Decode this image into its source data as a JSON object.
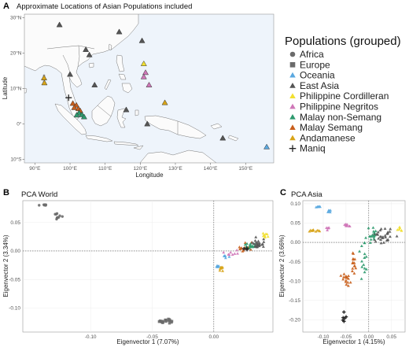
{
  "panels": {
    "a_label": "A",
    "b_label": "B",
    "c_label": "C"
  },
  "legend": {
    "title": "Populations (grouped)",
    "items": [
      {
        "name": "Africa",
        "color": "#6b6b6b",
        "shape": "circle"
      },
      {
        "name": "Europe",
        "color": "#6b6b6b",
        "shape": "square"
      },
      {
        "name": "Oceania",
        "color": "#5aa8e0",
        "shape": "triangle"
      },
      {
        "name": "East Asia",
        "color": "#555555",
        "shape": "triangle"
      },
      {
        "name": "Philippine Cordilleran",
        "color": "#f2e030",
        "shape": "triangle"
      },
      {
        "name": "Philippine Negritos",
        "color": "#cf77b8",
        "shape": "triangle"
      },
      {
        "name": "Malay non-Semang",
        "color": "#2e9a6e",
        "shape": "triangle"
      },
      {
        "name": "Malay Semang",
        "color": "#c95f1c",
        "shape": "triangle"
      },
      {
        "name": "Andamanese",
        "color": "#d8a418",
        "shape": "triangle"
      },
      {
        "name": "Maniq",
        "color": "#222222",
        "shape": "plus"
      }
    ]
  },
  "chart_data": [
    {
      "type": "scatter",
      "subtype": "map",
      "title": "Approximate Locations of Asian Populations included",
      "xlabel": "Longitude",
      "ylabel": "Latitude",
      "xlim": [
        87,
        158
      ],
      "ylim": [
        -11,
        31
      ],
      "x_ticks": [
        90,
        100,
        110,
        120,
        130,
        140,
        150
      ],
      "x_tick_labels": [
        "90°E",
        "100°E",
        "110°E",
        "120°E",
        "130°E",
        "140°E",
        "150°E"
      ],
      "y_ticks": [
        -10,
        0,
        10,
        20,
        30
      ],
      "y_tick_labels": [
        "10°S",
        "0°",
        "10°N",
        "20°N",
        "30°N"
      ],
      "ocean_color": "#eef4fb",
      "points": [
        {
          "group": "East Asia",
          "x": 97,
          "y": 28
        },
        {
          "group": "East Asia",
          "x": 114,
          "y": 26
        },
        {
          "group": "East Asia",
          "x": 104.5,
          "y": 21
        },
        {
          "group": "East Asia",
          "x": 105.5,
          "y": 19.5
        },
        {
          "group": "East Asia",
          "x": 120.5,
          "y": 23.5
        },
        {
          "group": "East Asia",
          "x": 100,
          "y": 14
        },
        {
          "group": "East Asia",
          "x": 107,
          "y": 11
        },
        {
          "group": "East Asia",
          "x": 116,
          "y": 4
        },
        {
          "group": "East Asia",
          "x": 122,
          "y": 0
        },
        {
          "group": "East Asia",
          "x": 143.5,
          "y": -4
        },
        {
          "group": "Oceania",
          "x": 156,
          "y": -6.5
        },
        {
          "group": "Philippine Cordilleran",
          "x": 121,
          "y": 17
        },
        {
          "group": "Philippine Negritos",
          "x": 121.5,
          "y": 14.5
        },
        {
          "group": "Philippine Negritos",
          "x": 122.5,
          "y": 11
        },
        {
          "group": "Philippine Negritos",
          "x": 121,
          "y": 13.3
        },
        {
          "group": "Andamanese",
          "x": 92.6,
          "y": 13
        },
        {
          "group": "Andamanese",
          "x": 92.7,
          "y": 11.6
        },
        {
          "group": "Andamanese",
          "x": 127,
          "y": 6
        },
        {
          "group": "Maniq",
          "x": 99.6,
          "y": 7.4
        },
        {
          "group": "Malay Semang",
          "x": 100.8,
          "y": 5.8
        },
        {
          "group": "Malay Semang",
          "x": 101.8,
          "y": 5.3
        },
        {
          "group": "Malay Semang",
          "x": 101.2,
          "y": 4.6
        },
        {
          "group": "Malay Semang",
          "x": 102.4,
          "y": 4.3
        },
        {
          "group": "Malay Semang",
          "x": 102.9,
          "y": 3.7
        },
        {
          "group": "Malay non-Semang",
          "x": 102.6,
          "y": 3.1
        },
        {
          "group": "Malay non-Semang",
          "x": 103.4,
          "y": 2.6
        },
        {
          "group": "Malay non-Semang",
          "x": 101.9,
          "y": 2.5
        },
        {
          "group": "Malay non-Semang",
          "x": 104,
          "y": 2
        }
      ]
    },
    {
      "type": "scatter",
      "title": "PCA World",
      "xlabel": "Eigenvector 1 (7.07%)",
      "ylabel": "Eigenvector 2 (3.34%)",
      "xlim": [
        -0.155,
        0.048
      ],
      "ylim": [
        -0.142,
        0.088
      ],
      "x_ticks": [
        -0.1,
        -0.05,
        0.0
      ],
      "x_tick_labels": [
        "-0.10",
        "-0.05",
        "0.00"
      ],
      "y_ticks": [
        -0.1,
        -0.05,
        0.0,
        0.05
      ],
      "y_tick_labels": [
        "-0.10",
        "-0.05",
        "0.00",
        "0.05"
      ],
      "reference_lines": {
        "x": 0,
        "y": 0
      },
      "clusters": [
        {
          "group": "Africa",
          "cx": -0.137,
          "cy": 0.08,
          "n": 6,
          "sx": 0.0012,
          "sy": 0.0012
        },
        {
          "group": "Africa",
          "cx": -0.127,
          "cy": 0.06,
          "n": 10,
          "sx": 0.0015,
          "sy": 0.0025
        },
        {
          "group": "Europe",
          "cx": -0.039,
          "cy": -0.122,
          "n": 22,
          "sx": 0.004,
          "sy": 0.0016
        },
        {
          "group": "Andamanese",
          "cx": 0.006,
          "cy": -0.03,
          "n": 8,
          "sx": 0.0009,
          "sy": 0.0035
        },
        {
          "group": "Oceania",
          "cx": 0.003,
          "cy": -0.027,
          "n": 6,
          "sx": 0.0008,
          "sy": 0.0012
        },
        {
          "group": "Oceania",
          "cx": 0.01,
          "cy": -0.01,
          "n": 5,
          "sx": 0.0015,
          "sy": 0.0015
        },
        {
          "group": "Philippine Negritos",
          "cx": 0.016,
          "cy": -0.004,
          "n": 8,
          "sx": 0.003,
          "sy": 0.002
        },
        {
          "group": "Malay Semang",
          "cx": 0.027,
          "cy": 0.006,
          "n": 14,
          "sx": 0.003,
          "sy": 0.004
        },
        {
          "group": "Malay non-Semang",
          "cx": 0.031,
          "cy": 0.009,
          "n": 14,
          "sx": 0.003,
          "sy": 0.003
        },
        {
          "group": "East Asia",
          "cx": 0.035,
          "cy": 0.012,
          "n": 24,
          "sx": 0.003,
          "sy": 0.004
        },
        {
          "group": "Philippine Cordilleran",
          "cx": 0.042,
          "cy": 0.028,
          "n": 8,
          "sx": 0.0015,
          "sy": 0.0025
        },
        {
          "group": "Maniq",
          "cx": 0.025,
          "cy": 0.003,
          "n": 3,
          "sx": 0.0015,
          "sy": 0.0015
        }
      ]
    },
    {
      "type": "scatter",
      "title": "PCA Asia",
      "xlabel": "Eigenvector 1 (4.15%)",
      "ylabel": "Eigenvector 2 (3.66%)",
      "xlim": [
        -0.145,
        0.08
      ],
      "ylim": [
        -0.232,
        0.108
      ],
      "x_ticks": [
        -0.1,
        -0.05,
        0.0,
        0.05
      ],
      "x_tick_labels": [
        "-0.10",
        "-0.05",
        "0.00",
        "0.05"
      ],
      "y_ticks": [
        -0.2,
        -0.15,
        -0.1,
        -0.05,
        0.0,
        0.05,
        0.1
      ],
      "y_tick_labels": [
        "-0.20",
        "-0.15",
        "-0.10",
        "-0.05",
        "0.00",
        "0.05",
        "0.10"
      ],
      "reference_lines": {
        "x": 0,
        "y": 0
      },
      "clusters": [
        {
          "group": "Oceania",
          "cx": -0.112,
          "cy": 0.092,
          "n": 6,
          "sx": 0.004,
          "sy": 0.0025
        },
        {
          "group": "Oceania",
          "cx": -0.087,
          "cy": 0.082,
          "n": 6,
          "sx": 0.004,
          "sy": 0.0025
        },
        {
          "group": "Andamanese",
          "cx": -0.12,
          "cy": 0.03,
          "n": 10,
          "sx": 0.006,
          "sy": 0.002
        },
        {
          "group": "Philippine Negritos",
          "cx": -0.05,
          "cy": 0.045,
          "n": 10,
          "sx": 0.004,
          "sy": 0.0035
        },
        {
          "group": "Philippine Negritos",
          "cx": -0.09,
          "cy": 0.035,
          "n": 5,
          "sx": 0.004,
          "sy": 0.003
        },
        {
          "group": "East Asia",
          "cx": 0.03,
          "cy": 0.016,
          "n": 32,
          "sx": 0.012,
          "sy": 0.009
        },
        {
          "group": "Philippine Cordilleran",
          "cx": 0.07,
          "cy": 0.035,
          "n": 6,
          "sx": 0.003,
          "sy": 0.004
        },
        {
          "group": "Malay non-Semang",
          "cx": 0.008,
          "cy": 0.012,
          "n": 16,
          "sx": 0.006,
          "sy": 0.01
        },
        {
          "group": "Malay non-Semang",
          "cx": -0.012,
          "cy": -0.04,
          "n": 14,
          "sx": 0.004,
          "sy": 0.03
        },
        {
          "group": "Malay Semang",
          "cx": -0.032,
          "cy": -0.06,
          "n": 14,
          "sx": 0.004,
          "sy": 0.018
        },
        {
          "group": "Malay Semang",
          "cx": -0.05,
          "cy": -0.095,
          "n": 16,
          "sx": 0.004,
          "sy": 0.008
        },
        {
          "group": "Maniq",
          "cx": -0.055,
          "cy": -0.205,
          "n": 6,
          "sx": 0.002,
          "sy": 0.012
        }
      ]
    }
  ]
}
